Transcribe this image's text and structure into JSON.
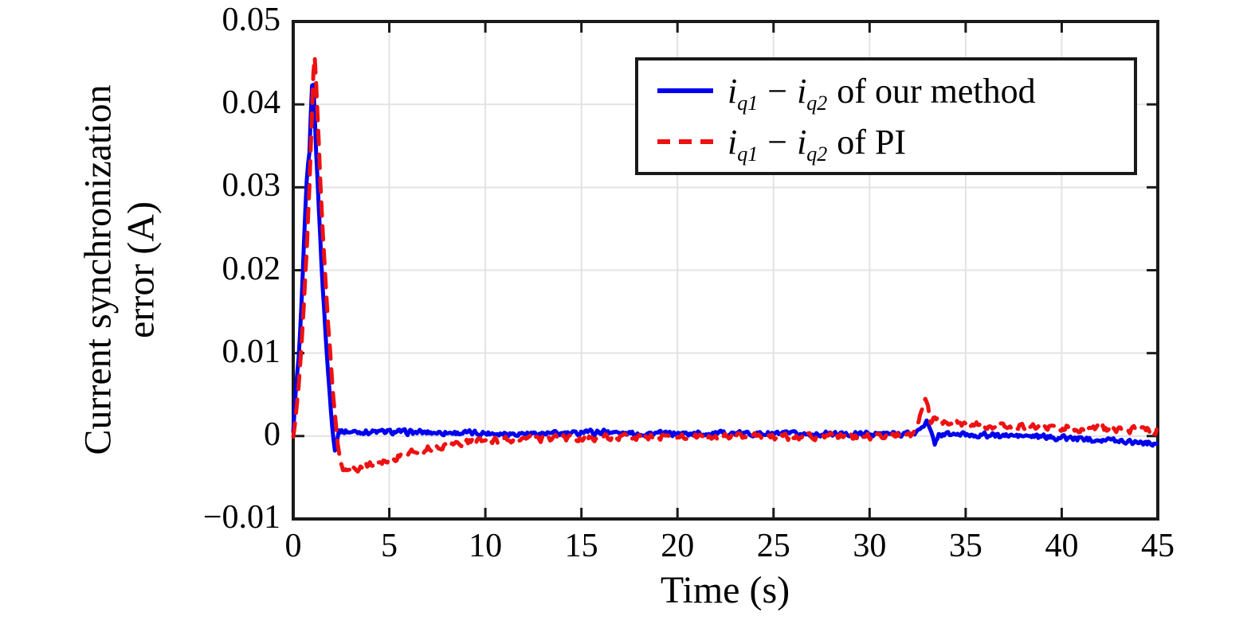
{
  "figure": {
    "xlabel": "Time (s)",
    "ylabel_line1": "Current synchronization",
    "ylabel_line2": "error (A)"
  },
  "legend": {
    "position": "upper right",
    "items": [
      {
        "series": "our-method",
        "line_style": "solid",
        "color": "#0000EE",
        "label": {
          "i1": "i",
          "sub1": "q1",
          "op": "−",
          "i2": "i",
          "sub2": "q2",
          "rest": "of our method"
        }
      },
      {
        "series": "pi",
        "line_style": "dashed",
        "color": "#EE1111",
        "label": {
          "i1": "i",
          "sub1": "q1",
          "op": "−",
          "i2": "i",
          "sub2": "q2",
          "rest": "of PI"
        }
      }
    ]
  },
  "chart_data": {
    "type": "line",
    "title": "",
    "xlabel": "Time (s)",
    "ylabel": "Current synchronization error (A)",
    "xlim": [
      0,
      45
    ],
    "ylim": [
      -0.01,
      0.05
    ],
    "xticks": [
      0,
      5,
      10,
      15,
      20,
      25,
      30,
      35,
      40,
      45
    ],
    "xtick_labels": [
      "0",
      "5",
      "10",
      "15",
      "20",
      "25",
      "30",
      "35",
      "40",
      "45"
    ],
    "yticks": [
      -0.01,
      0,
      0.01,
      0.02,
      0.03,
      0.04,
      0.05
    ],
    "ytick_labels": [
      "−0.01",
      "0",
      "0.01",
      "0.02",
      "0.03",
      "0.04",
      "0.05"
    ],
    "grid": true,
    "legend_position": "upper right",
    "colors": {
      "grid": "#E3E3E3",
      "axis": "#1A1A1A",
      "background": "#FFFFFF"
    },
    "series": [
      {
        "name": "iq1 − iq2 of our method",
        "color": "#0000EE",
        "style": "solid",
        "line_width": 5,
        "noise_amplitude": 0.00035,
        "keypoints": [
          [
            0,
            0.0004
          ],
          [
            0.06,
            0.003
          ],
          [
            0.15,
            0.006
          ],
          [
            0.3,
            0.0098
          ],
          [
            0.45,
            0.0165
          ],
          [
            0.6,
            0.0255
          ],
          [
            0.7,
            0.0305
          ],
          [
            0.78,
            0.033
          ],
          [
            0.85,
            0.0345
          ],
          [
            0.92,
            0.039
          ],
          [
            1.0,
            0.0435
          ],
          [
            1.07,
            0.0418
          ],
          [
            1.2,
            0.034
          ],
          [
            1.35,
            0.0265
          ],
          [
            1.5,
            0.0195
          ],
          [
            1.65,
            0.0135
          ],
          [
            1.8,
            0.008
          ],
          [
            1.95,
            0.0035
          ],
          [
            2.08,
            0.0002
          ],
          [
            2.18,
            -0.002
          ],
          [
            2.26,
            -0.0008
          ],
          [
            2.35,
            0.0006
          ],
          [
            3,
            0.0005
          ],
          [
            5,
            0.0005
          ],
          [
            8,
            0.0004
          ],
          [
            12,
            0.0003
          ],
          [
            14.8,
            0.0003
          ],
          [
            15.2,
            0.0007
          ],
          [
            15.6,
            0.0004
          ],
          [
            16.4,
            0.0006
          ],
          [
            17,
            0.0003
          ],
          [
            20,
            0.0003
          ],
          [
            24,
            0.0003
          ],
          [
            28,
            0.0002
          ],
          [
            32.4,
            0.0003
          ],
          [
            32.7,
            0.0012
          ],
          [
            33.0,
            0.0017
          ],
          [
            33.2,
            0.0003
          ],
          [
            33.4,
            -0.0009
          ],
          [
            33.6,
            0.0002
          ],
          [
            34.5,
            0.0002
          ],
          [
            36,
            0.0001
          ],
          [
            38,
            0.0
          ],
          [
            40,
            -0.0002
          ],
          [
            42,
            -0.0004
          ],
          [
            44,
            -0.0007
          ],
          [
            45,
            -0.0009
          ]
        ]
      },
      {
        "name": "iq1 − iq2 of PI",
        "color": "#EE1111",
        "style": "dashed",
        "line_width": 5,
        "noise_amplitude": 0.00045,
        "keypoints": [
          [
            0,
            0.0001
          ],
          [
            0.12,
            0.002
          ],
          [
            0.25,
            0.005
          ],
          [
            0.4,
            0.0095
          ],
          [
            0.55,
            0.0155
          ],
          [
            0.7,
            0.0225
          ],
          [
            0.85,
            0.0305
          ],
          [
            0.95,
            0.037
          ],
          [
            1.03,
            0.043
          ],
          [
            1.09,
            0.0467
          ],
          [
            1.16,
            0.0445
          ],
          [
            1.27,
            0.0385
          ],
          [
            1.4,
            0.031
          ],
          [
            1.55,
            0.024
          ],
          [
            1.7,
            0.018
          ],
          [
            1.85,
            0.0125
          ],
          [
            2.0,
            0.0075
          ],
          [
            2.15,
            0.003
          ],
          [
            2.3,
            -0.0008
          ],
          [
            2.45,
            -0.003
          ],
          [
            2.6,
            -0.0038
          ],
          [
            2.85,
            -0.0041
          ],
          [
            3.1,
            -0.004
          ],
          [
            3.5,
            -0.0038
          ],
          [
            4,
            -0.0034
          ],
          [
            4.5,
            -0.0031
          ],
          [
            5,
            -0.0028
          ],
          [
            5.5,
            -0.0025
          ],
          [
            6,
            -0.0021
          ],
          [
            6.5,
            -0.0018
          ],
          [
            7,
            -0.0015
          ],
          [
            7.5,
            -0.0013
          ],
          [
            8,
            -0.0011
          ],
          [
            8.5,
            -0.0009
          ],
          [
            9,
            -0.0007
          ],
          [
            10,
            -0.0005
          ],
          [
            11,
            -0.0005
          ],
          [
            12,
            -0.0004
          ],
          [
            13,
            -0.0003
          ],
          [
            14,
            -0.0003
          ],
          [
            15,
            -0.0003
          ],
          [
            16,
            -0.0002
          ],
          [
            17,
            -0.0002
          ],
          [
            18,
            -0.0002
          ],
          [
            20,
            -0.0001
          ],
          [
            22,
            -0.0001
          ],
          [
            24,
            0.0
          ],
          [
            26,
            -0.0001
          ],
          [
            28,
            0.0
          ],
          [
            30,
            0.0
          ],
          [
            32.2,
            0.0001
          ],
          [
            32.5,
            0.0016
          ],
          [
            32.75,
            0.0036
          ],
          [
            32.9,
            0.0047
          ],
          [
            33.05,
            0.0033
          ],
          [
            33.2,
            0.0018
          ],
          [
            33.5,
            0.0023
          ],
          [
            34,
            0.0016
          ],
          [
            34.5,
            0.0019
          ],
          [
            35,
            0.0013
          ],
          [
            36,
            0.0013
          ],
          [
            37,
            0.0011
          ],
          [
            38,
            0.0012
          ],
          [
            39,
            0.001
          ],
          [
            40,
            0.001
          ],
          [
            41,
            0.0008
          ],
          [
            42,
            0.0009
          ],
          [
            43,
            0.0007
          ],
          [
            44,
            0.0008
          ],
          [
            45,
            0.0006
          ]
        ]
      }
    ]
  }
}
